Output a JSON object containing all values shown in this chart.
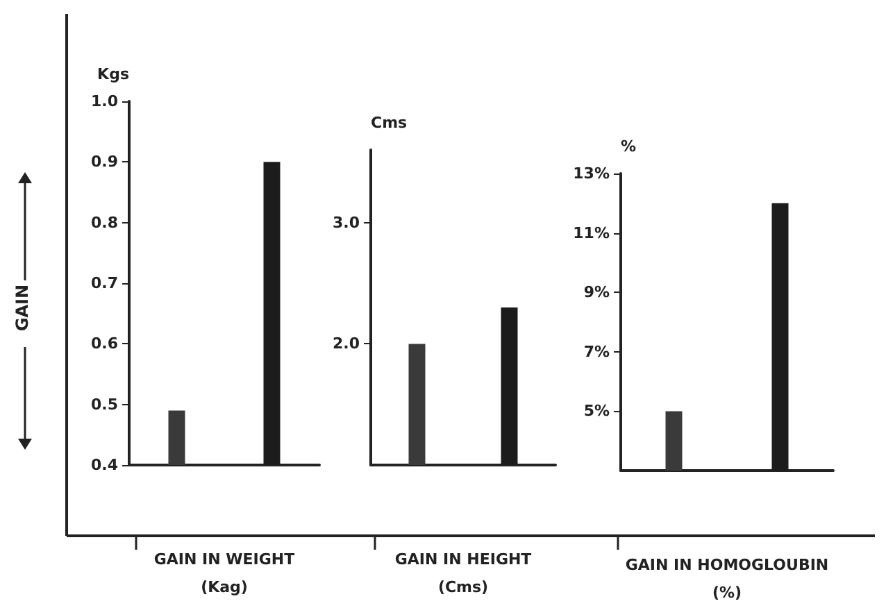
{
  "chart_data": [
    {
      "type": "bar",
      "xlabel": "GAIN IN WEIGHT\n(Kag)",
      "ylabel": "Kgs",
      "annotations": [
        "GAIN"
      ],
      "categories": [
        null,
        null
      ],
      "values": [
        0.49,
        0.9
      ],
      "colors": [
        "#3a3a3a",
        "#1c1c1c"
      ],
      "ylim": [
        0.4,
        1.0
      ],
      "yticks": [
        0.4,
        0.5,
        0.6,
        0.7,
        0.8,
        0.9,
        {
          "value": 1.0,
          "label": "1.0"
        }
      ],
      "grid": false
    },
    {
      "type": "bar",
      "xlabel": "GAIN IN HEIGHT\n(Cms)",
      "ylabel": "Cms",
      "categories": [
        null,
        null
      ],
      "values": [
        2.0,
        2.3
      ],
      "colors": [
        "#3a3a3a",
        "#1c1c1c"
      ],
      "ylim": [
        1.0,
        3.6
      ],
      "yticks": [
        {
          "value": 2.0,
          "label": "2.0"
        },
        {
          "value": 3.0,
          "label": "3.0"
        }
      ],
      "grid": false
    },
    {
      "type": "bar",
      "xlabel": "GAIN IN HOMOGLOUBIN\n(%)",
      "ylabel": "%",
      "categories": [
        null,
        null
      ],
      "values": [
        5,
        12
      ],
      "colors": [
        "#3a3a3a",
        "#1c1c1c"
      ],
      "ylim": [
        3,
        13
      ],
      "yticks": [
        {
          "value": 5,
          "label": "5%"
        },
        {
          "value": 7,
          "label": "7%"
        },
        {
          "value": 9,
          "label": "9%"
        },
        {
          "value": 11,
          "label": "11%"
        },
        {
          "value": 13,
          "label": "13%"
        }
      ],
      "grid": false
    }
  ]
}
